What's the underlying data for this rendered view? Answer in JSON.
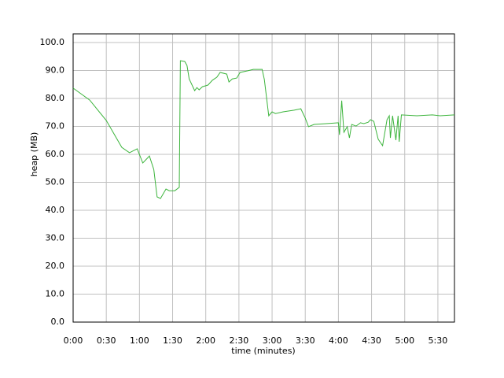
{
  "chart_data": {
    "type": "line",
    "x_label": "time (minutes)",
    "y_label": "heap (MB)",
    "xlim": [
      0,
      345
    ],
    "ylim": [
      0,
      103.1
    ],
    "xticks": [
      {
        "value": 0,
        "label": "0:00"
      },
      {
        "value": 30,
        "label": "0:30"
      },
      {
        "value": 60,
        "label": "1:00"
      },
      {
        "value": 90,
        "label": "1:30"
      },
      {
        "value": 120,
        "label": "2:00"
      },
      {
        "value": 150,
        "label": "2:30"
      },
      {
        "value": 180,
        "label": "3:00"
      },
      {
        "value": 210,
        "label": "3:30"
      },
      {
        "value": 240,
        "label": "4:00"
      },
      {
        "value": 270,
        "label": "4:30"
      },
      {
        "value": 300,
        "label": "5:00"
      },
      {
        "value": 330,
        "label": "5:30"
      }
    ],
    "yticks": [
      {
        "value": 0,
        "label": "0.0"
      },
      {
        "value": 10,
        "label": "10.0"
      },
      {
        "value": 20,
        "label": "20.0"
      },
      {
        "value": 30,
        "label": "30.0"
      },
      {
        "value": 40,
        "label": "40.0"
      },
      {
        "value": 50,
        "label": "50.0"
      },
      {
        "value": 60,
        "label": "60.0"
      },
      {
        "value": 70,
        "label": "70.0"
      },
      {
        "value": 80,
        "label": "80.0"
      },
      {
        "value": 90,
        "label": "90.0"
      },
      {
        "value": 100,
        "label": "100.0"
      }
    ],
    "grid": true,
    "series": [
      {
        "color": "#3cb43c",
        "x": [
          0,
          15,
          30,
          44,
          51,
          58,
          63,
          69,
          73,
          76,
          79,
          84,
          87,
          92,
          96,
          97,
          101,
          103,
          105,
          110,
          112,
          114,
          117,
          122,
          126,
          130,
          133,
          139,
          141,
          144,
          148,
          151,
          158,
          163,
          171,
          173,
          177,
          180,
          183,
          190,
          200,
          206,
          210,
          213,
          218,
          229,
          240,
          241,
          243,
          245,
          248,
          250,
          252,
          256,
          260,
          263,
          267,
          269,
          272,
          276,
          280,
          284,
          286,
          287,
          289,
          292,
          294,
          295,
          297,
          311,
          325,
          332,
          345
        ],
        "values": [
          83.7,
          79.4,
          72.1,
          62.5,
          60.6,
          62.0,
          56.9,
          59.4,
          54.6,
          44.8,
          44.2,
          47.6,
          47.0,
          47.0,
          48.2,
          93.5,
          93.2,
          91.8,
          87.0,
          82.8,
          83.9,
          83.1,
          84.2,
          84.8,
          86.5,
          87.6,
          89.3,
          88.7,
          85.9,
          87.0,
          87.3,
          89.3,
          89.9,
          90.4,
          90.4,
          86.8,
          73.8,
          75.2,
          74.6,
          75.2,
          75.8,
          76.3,
          73.0,
          69.9,
          70.7,
          71.0,
          71.3,
          67.0,
          79.2,
          67.9,
          69.9,
          65.9,
          70.7,
          70.1,
          71.3,
          71.0,
          71.5,
          72.4,
          71.8,
          65.4,
          63.1,
          72.4,
          73.8,
          65.9,
          73.8,
          65.1,
          73.8,
          64.5,
          74.1,
          73.8,
          74.1,
          73.8,
          74.1
        ]
      }
    ]
  }
}
